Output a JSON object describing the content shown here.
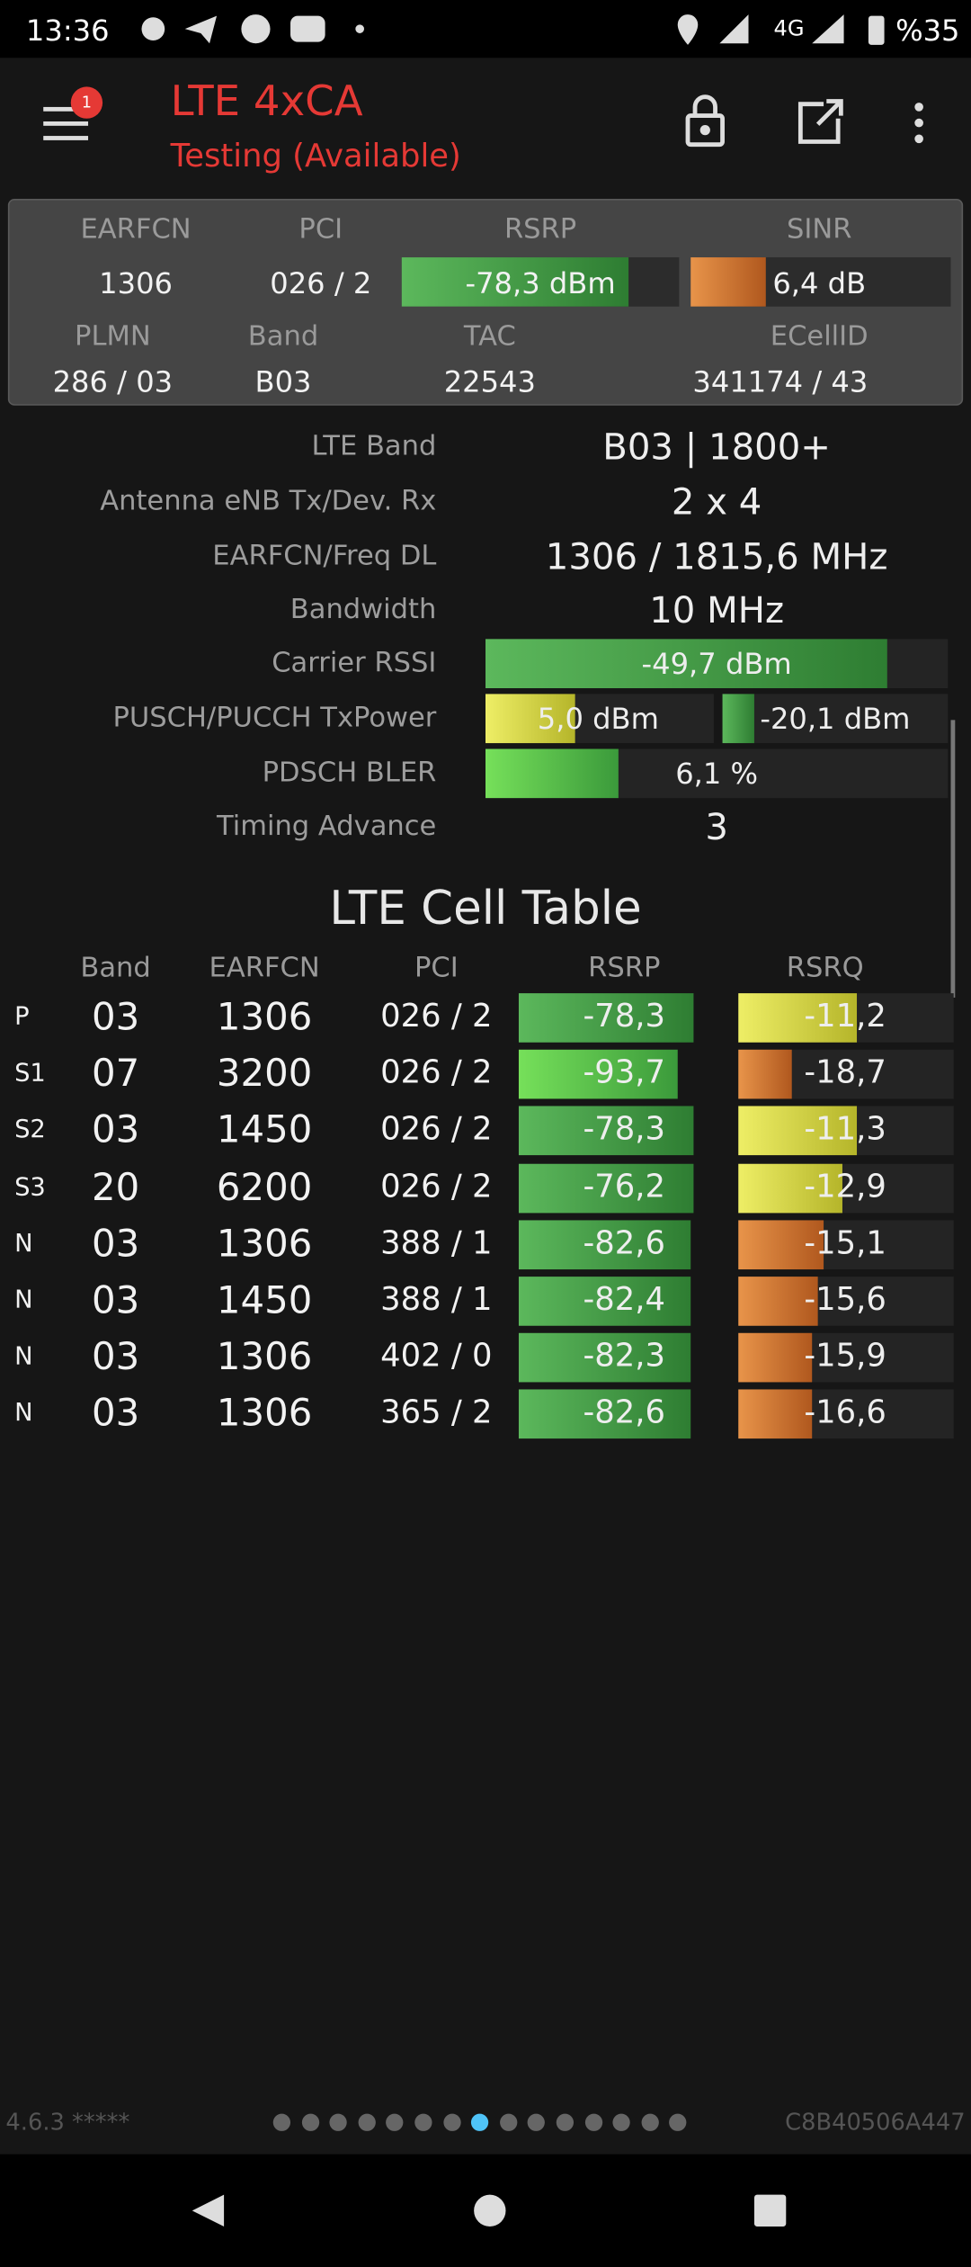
{
  "status_bar": {
    "time": "13:36",
    "network": "4G",
    "battery": "%35"
  },
  "toolbar": {
    "badge": "1",
    "title": "LTE 4xCA",
    "subtitle": "Testing (Available)"
  },
  "summary": {
    "headers": [
      "EARFCN",
      "PCI",
      "RSRP",
      "SINR"
    ],
    "values": [
      "1306",
      "026 / 2",
      "-78,3 dBm",
      "6,4 dB"
    ],
    "headers2": [
      "PLMN",
      "Band",
      "TAC",
      "ECellID"
    ],
    "values2": [
      "286 / 03",
      "B03",
      "22543",
      "341174 / 43"
    ]
  },
  "details": {
    "rows": [
      {
        "label": "LTE Band",
        "values": [
          "B03 | 1800+"
        ]
      },
      {
        "label": "Antenna eNB Tx/Dev. Rx",
        "values": [
          "2 x 4"
        ]
      },
      {
        "label": "EARFCN/Freq DL",
        "values": [
          "1306 / 1815,6 MHz"
        ]
      },
      {
        "label": "Bandwidth",
        "values": [
          "10 MHz"
        ]
      },
      {
        "label": "Carrier RSSI",
        "values": [
          "-49,7 dBm"
        ]
      },
      {
        "label": "PUSCH/PUCCH TxPower",
        "values": [
          "5,0 dBm",
          "-20,1 dBm"
        ]
      },
      {
        "label": "PDSCH BLER",
        "values": [
          "6,1 %"
        ]
      },
      {
        "label": "Timing Advance",
        "values": [
          "3"
        ]
      }
    ]
  },
  "cell_table": {
    "title": "LTE Cell Table",
    "columns": [
      "Band",
      "EARFCN",
      "PCI",
      "RSRP",
      "RSRQ"
    ],
    "rows": [
      [
        "P",
        "03",
        "1306",
        "026 / 2",
        "-78,3",
        "-11,2"
      ],
      [
        "S1",
        "07",
        "3200",
        "026 / 2",
        "-93,7",
        "-18,7"
      ],
      [
        "S2",
        "03",
        "1450",
        "026 / 2",
        "-78,3",
        "-11,3"
      ],
      [
        "S3",
        "20",
        "6200",
        "026 / 2",
        "-76,2",
        "-12,9"
      ],
      [
        "N",
        "03",
        "1306",
        "388 / 1",
        "-82,6",
        "-15,1"
      ],
      [
        "N",
        "03",
        "1450",
        "388 / 1",
        "-82,4",
        "-15,6"
      ],
      [
        "N",
        "03",
        "1306",
        "402 / 0",
        "-82,3",
        "-15,9"
      ],
      [
        "N",
        "03",
        "1306",
        "365 / 2",
        "-82,6",
        "-16,6"
      ]
    ]
  },
  "footer": {
    "version": "4.6.3 *****",
    "device": "C8B40506A447"
  }
}
